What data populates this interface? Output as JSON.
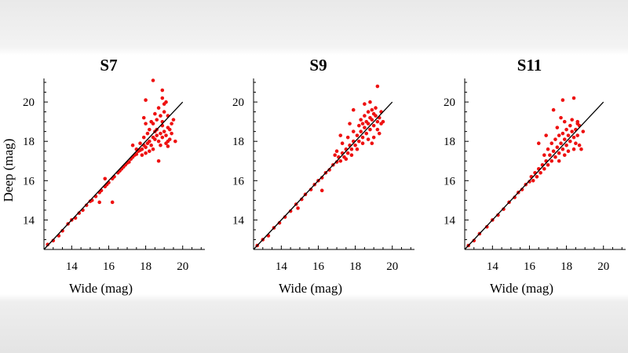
{
  "chart_data": [
    {
      "type": "scatter",
      "title": "S7",
      "xlabel": "Wide (mag)",
      "ylabel": "Deep (mag)",
      "xlim": [
        12.5,
        21.2
      ],
      "ylim": [
        12.5,
        21.2
      ],
      "xticks": [
        14,
        16,
        18,
        20
      ],
      "yticks": [
        14,
        16,
        18,
        20
      ],
      "reference_line": {
        "from": [
          12.5,
          12.5
        ],
        "to": [
          20,
          20
        ]
      },
      "point_color": "#ee1111",
      "points": [
        [
          12.7,
          12.75
        ],
        [
          13,
          12.95
        ],
        [
          13.3,
          13.2
        ],
        [
          13.5,
          13.45
        ],
        [
          13.8,
          13.8
        ],
        [
          14,
          14.0
        ],
        [
          14.2,
          14.1
        ],
        [
          14.4,
          14.35
        ],
        [
          14.6,
          14.5
        ],
        [
          14.8,
          14.75
        ],
        [
          15,
          14.95
        ],
        [
          15.1,
          15.0
        ],
        [
          15.3,
          15.2
        ],
        [
          15.5,
          15.4
        ],
        [
          15.6,
          15.5
        ],
        [
          15.8,
          15.7
        ],
        [
          15.9,
          15.8
        ],
        [
          16.0,
          15.9
        ],
        [
          16.2,
          16.1
        ],
        [
          16.3,
          16.2
        ],
        [
          16.5,
          16.4
        ],
        [
          16.6,
          16.5
        ],
        [
          16.7,
          16.6
        ],
        [
          16.8,
          16.7
        ],
        [
          16.9,
          16.8
        ],
        [
          17.0,
          16.9
        ],
        [
          17.1,
          16.95
        ],
        [
          17.2,
          17.1
        ],
        [
          17.3,
          17.2
        ],
        [
          17.4,
          17.3
        ],
        [
          17.5,
          17.35
        ],
        [
          17.6,
          17.5
        ],
        [
          17.7,
          17.55
        ],
        [
          17.8,
          17.6
        ],
        [
          17.9,
          17.8
        ],
        [
          18.0,
          17.7
        ],
        [
          18.1,
          17.9
        ],
        [
          18.2,
          18.0
        ],
        [
          18.3,
          17.8
        ],
        [
          18.4,
          18.2
        ],
        [
          18.5,
          18.1
        ],
        [
          18.6,
          18.3
        ],
        [
          18.7,
          18.0
        ],
        [
          18.8,
          18.4
        ],
        [
          18.9,
          18.2
        ],
        [
          19.0,
          18.5
        ],
        [
          19.1,
          18.3
        ],
        [
          19.2,
          18.7
        ],
        [
          19.3,
          18.6
        ],
        [
          19.4,
          18.9
        ],
        [
          18.2,
          18.6
        ],
        [
          18.4,
          18.9
        ],
        [
          18.6,
          19.1
        ],
        [
          18.8,
          19.3
        ],
        [
          19.0,
          19.5
        ],
        [
          19.2,
          19.3
        ],
        [
          18.5,
          19.4
        ],
        [
          18.3,
          19.0
        ],
        [
          18.7,
          19.7
        ],
        [
          19.0,
          19.9
        ],
        [
          18.9,
          18.8
        ],
        [
          18.6,
          18.6
        ],
        [
          18.4,
          17.6
        ],
        [
          18.8,
          17.8
        ],
        [
          19.1,
          17.9
        ],
        [
          19.3,
          18.1
        ],
        [
          19.4,
          18.4
        ],
        [
          18.1,
          18.4
        ],
        [
          17.9,
          18.2
        ],
        [
          17.7,
          17.9
        ],
        [
          17.5,
          17.6
        ],
        [
          17.8,
          17.3
        ],
        [
          18.0,
          17.4
        ],
        [
          18.2,
          17.5
        ],
        [
          19.5,
          19.1
        ],
        [
          19.2,
          18.0
        ],
        [
          18.9,
          19.0
        ],
        [
          18.5,
          18.5
        ],
        [
          18.0,
          18.9
        ],
        [
          17.9,
          19.2
        ],
        [
          18.4,
          21.1
        ],
        [
          18.9,
          20.6
        ],
        [
          18.0,
          20.1
        ],
        [
          19.1,
          20.0
        ],
        [
          18.9,
          20.2
        ],
        [
          15.5,
          14.9
        ],
        [
          16.2,
          14.9
        ],
        [
          18.7,
          17.0
        ],
        [
          19.6,
          18.0
        ],
        [
          17.3,
          17.8
        ],
        [
          15.8,
          16.1
        ],
        [
          19.2,
          17.75
        ]
      ]
    },
    {
      "type": "scatter",
      "title": "S9",
      "xlabel": "Wide (mag)",
      "ylabel": "",
      "xlim": [
        12.5,
        21.2
      ],
      "ylim": [
        12.5,
        21.2
      ],
      "xticks": [
        14,
        16,
        18,
        20
      ],
      "yticks": [
        14,
        16,
        18,
        20
      ],
      "reference_line": {
        "from": [
          12.5,
          12.5
        ],
        "to": [
          20,
          20
        ]
      },
      "point_color": "#ee1111",
      "points": [
        [
          12.7,
          12.7
        ],
        [
          13.0,
          13.0
        ],
        [
          13.3,
          13.2
        ],
        [
          13.6,
          13.6
        ],
        [
          13.9,
          13.85
        ],
        [
          14.2,
          14.15
        ],
        [
          14.5,
          14.45
        ],
        [
          14.8,
          14.8
        ],
        [
          15.1,
          15.05
        ],
        [
          15.3,
          15.3
        ],
        [
          15.6,
          15.55
        ],
        [
          15.8,
          15.8
        ],
        [
          16.0,
          16.0
        ],
        [
          16.2,
          16.15
        ],
        [
          16.4,
          16.4
        ],
        [
          16.6,
          16.55
        ],
        [
          16.8,
          16.8
        ],
        [
          17.0,
          16.95
        ],
        [
          17.1,
          17.2
        ],
        [
          17.2,
          17.0
        ],
        [
          17.3,
          17.4
        ],
        [
          17.4,
          17.2
        ],
        [
          17.5,
          17.6
        ],
        [
          17.6,
          17.4
        ],
        [
          17.7,
          17.8
        ],
        [
          17.8,
          17.6
        ],
        [
          17.9,
          18.0
        ],
        [
          18.0,
          17.8
        ],
        [
          18.1,
          18.3
        ],
        [
          18.2,
          18.0
        ],
        [
          18.3,
          18.5
        ],
        [
          18.4,
          18.2
        ],
        [
          18.5,
          18.7
        ],
        [
          18.6,
          18.4
        ],
        [
          18.7,
          18.9
        ],
        [
          18.8,
          18.6
        ],
        [
          18.9,
          19.1
        ],
        [
          19.0,
          18.8
        ],
        [
          19.1,
          19.3
        ],
        [
          19.2,
          19.0
        ],
        [
          19.3,
          19.2
        ],
        [
          19.4,
          18.9
        ],
        [
          18.3,
          19.1
        ],
        [
          18.5,
          19.3
        ],
        [
          18.7,
          19.5
        ],
        [
          18.9,
          19.6
        ],
        [
          19.1,
          19.7
        ],
        [
          18.4,
          18.9
        ],
        [
          18.6,
          19.0
        ],
        [
          18.8,
          19.2
        ],
        [
          19.0,
          19.4
        ],
        [
          19.2,
          18.6
        ],
        [
          19.3,
          18.4
        ],
        [
          19.0,
          18.2
        ],
        [
          18.7,
          18.1
        ],
        [
          18.4,
          17.9
        ],
        [
          18.1,
          17.6
        ],
        [
          17.8,
          17.3
        ],
        [
          17.5,
          17.1
        ],
        [
          17.9,
          18.5
        ],
        [
          18.2,
          18.8
        ],
        [
          17.6,
          18.2
        ],
        [
          17.3,
          17.9
        ],
        [
          19.4,
          19.5
        ],
        [
          18.8,
          20.0
        ],
        [
          19.2,
          20.8
        ],
        [
          18.5,
          19.9
        ],
        [
          17.9,
          19.6
        ],
        [
          17.2,
          18.3
        ],
        [
          16.2,
          15.5
        ],
        [
          14.9,
          14.6
        ],
        [
          19.5,
          19.0
        ],
        [
          17.0,
          17.5
        ],
        [
          18.9,
          17.9
        ],
        [
          17.7,
          18.9
        ],
        [
          16.9,
          17.3
        ]
      ]
    },
    {
      "type": "scatter",
      "title": "S11",
      "xlabel": "Wide (mag)",
      "ylabel": "",
      "xlim": [
        12.5,
        21.2
      ],
      "ylim": [
        12.5,
        21.2
      ],
      "xticks": [
        14,
        16,
        18,
        20
      ],
      "yticks": [
        14,
        16,
        18,
        20
      ],
      "reference_line": {
        "from": [
          12.5,
          12.5
        ],
        "to": [
          20,
          20
        ]
      },
      "point_color": "#ee1111",
      "points": [
        [
          12.7,
          12.7
        ],
        [
          13.0,
          12.95
        ],
        [
          13.3,
          13.3
        ],
        [
          13.7,
          13.65
        ],
        [
          14.0,
          14.0
        ],
        [
          14.3,
          14.25
        ],
        [
          14.6,
          14.55
        ],
        [
          14.9,
          14.9
        ],
        [
          15.2,
          15.15
        ],
        [
          15.4,
          15.4
        ],
        [
          15.6,
          15.55
        ],
        [
          15.8,
          15.8
        ],
        [
          16.0,
          15.95
        ],
        [
          16.1,
          16.2
        ],
        [
          16.2,
          16.0
        ],
        [
          16.3,
          16.4
        ],
        [
          16.4,
          16.2
        ],
        [
          16.5,
          16.6
        ],
        [
          16.6,
          16.4
        ],
        [
          16.7,
          16.8
        ],
        [
          16.8,
          16.6
        ],
        [
          16.9,
          17.0
        ],
        [
          17.0,
          16.8
        ],
        [
          17.1,
          17.3
        ],
        [
          17.2,
          17.0
        ],
        [
          17.3,
          17.5
        ],
        [
          17.4,
          17.2
        ],
        [
          17.5,
          17.7
        ],
        [
          17.6,
          17.4
        ],
        [
          17.7,
          17.9
        ],
        [
          17.8,
          17.6
        ],
        [
          17.9,
          18.1
        ],
        [
          18.0,
          17.8
        ],
        [
          18.1,
          18.3
        ],
        [
          18.2,
          18.0
        ],
        [
          18.3,
          18.5
        ],
        [
          18.4,
          18.2
        ],
        [
          18.5,
          18.6
        ],
        [
          18.6,
          18.3
        ],
        [
          18.7,
          18.8
        ],
        [
          18.2,
          18.8
        ],
        [
          18.0,
          18.6
        ],
        [
          17.8,
          18.4
        ],
        [
          17.6,
          18.3
        ],
        [
          17.4,
          18.1
        ],
        [
          17.2,
          17.9
        ],
        [
          17.0,
          17.6
        ],
        [
          16.8,
          17.3
        ],
        [
          17.5,
          18.7
        ],
        [
          17.9,
          19.0
        ],
        [
          18.3,
          19.1
        ],
        [
          18.6,
          19.0
        ],
        [
          17.7,
          19.2
        ],
        [
          18.1,
          17.5
        ],
        [
          18.4,
          17.6
        ],
        [
          18.7,
          17.8
        ],
        [
          17.9,
          17.3
        ],
        [
          17.6,
          17.0
        ],
        [
          18.8,
          17.6
        ],
        [
          18.5,
          17.9
        ],
        [
          17.8,
          20.1
        ],
        [
          18.4,
          20.2
        ],
        [
          17.3,
          19.6
        ],
        [
          16.5,
          17.9
        ],
        [
          18.9,
          18.5
        ],
        [
          16.9,
          18.3
        ],
        [
          18.6,
          18.9
        ]
      ]
    }
  ]
}
